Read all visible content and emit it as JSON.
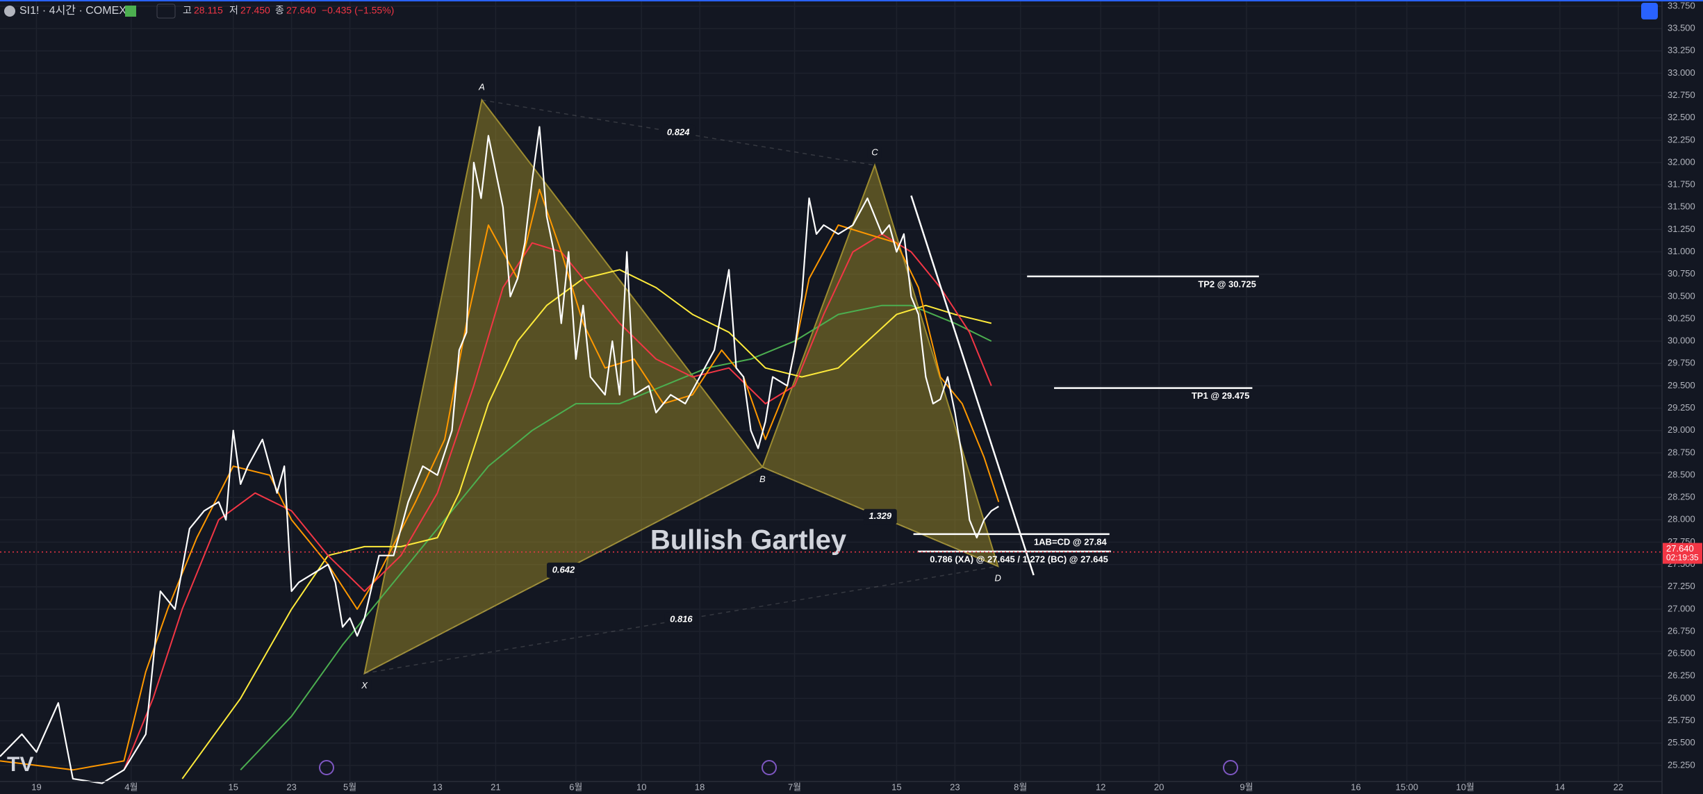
{
  "header": {
    "symbol": "SI1! · 4시간 · COMEX",
    "high_label": "고",
    "high": "28.115",
    "low_label": "저",
    "low": "27.450",
    "close_label": "종",
    "close": "27.640",
    "change": "−0.435 (−1.55%)"
  },
  "chart_data": {
    "type": "line",
    "title": "Bullish Gartley",
    "xlim": [
      -5,
      223
    ],
    "ylim": [
      25.07,
      33.82
    ],
    "grid": true,
    "xticks": [
      {
        "value": 0,
        "label": "19"
      },
      {
        "value": 13,
        "label": "4월"
      },
      {
        "value": 27,
        "label": "15"
      },
      {
        "value": 35,
        "label": "23"
      },
      {
        "value": 43,
        "label": "5월"
      },
      {
        "value": 55,
        "label": "13"
      },
      {
        "value": 63,
        "label": "21"
      },
      {
        "value": 74,
        "label": "6월"
      },
      {
        "value": 83,
        "label": "10"
      },
      {
        "value": 91,
        "label": "18"
      },
      {
        "value": 104,
        "label": "7월"
      },
      {
        "value": 118,
        "label": "15"
      },
      {
        "value": 126,
        "label": "23"
      },
      {
        "value": 135,
        "label": "8월"
      },
      {
        "value": 146,
        "label": "12"
      },
      {
        "value": 154,
        "label": "20"
      },
      {
        "value": 166,
        "label": "9월"
      },
      {
        "value": 181,
        "label": "16"
      },
      {
        "value": 188,
        "label": "15:00"
      },
      {
        "value": 196,
        "label": "10월"
      },
      {
        "value": 209,
        "label": "14"
      },
      {
        "value": 217,
        "label": "22"
      }
    ],
    "yticks": [
      {
        "value": 25.25,
        "label": "25.250"
      },
      {
        "value": 25.5,
        "label": "25.500"
      },
      {
        "value": 25.75,
        "label": "25.750"
      },
      {
        "value": 26,
        "label": "26.000"
      },
      {
        "value": 26.25,
        "label": "26.250"
      },
      {
        "value": 26.5,
        "label": "26.500"
      },
      {
        "value": 26.75,
        "label": "26.750"
      },
      {
        "value": 27,
        "label": "27.000"
      },
      {
        "value": 27.25,
        "label": "27.250"
      },
      {
        "value": 27.5,
        "label": "27.500"
      },
      {
        "value": 27.75,
        "label": "27.750"
      },
      {
        "value": 28,
        "label": "28.000"
      },
      {
        "value": 28.25,
        "label": "28.250"
      },
      {
        "value": 28.5,
        "label": "28.500"
      },
      {
        "value": 28.75,
        "label": "28.750"
      },
      {
        "value": 29,
        "label": "29.000"
      },
      {
        "value": 29.25,
        "label": "29.250"
      },
      {
        "value": 29.5,
        "label": "29.500"
      },
      {
        "value": 29.75,
        "label": "29.750"
      },
      {
        "value": 30,
        "label": "30.000"
      },
      {
        "value": 30.25,
        "label": "30.250"
      },
      {
        "value": 30.5,
        "label": "30.500"
      },
      {
        "value": 30.75,
        "label": "30.750"
      },
      {
        "value": 31,
        "label": "31.000"
      },
      {
        "value": 31.25,
        "label": "31.250"
      },
      {
        "value": 31.5,
        "label": "31.500"
      },
      {
        "value": 31.75,
        "label": "31.750"
      },
      {
        "value": 32,
        "label": "32.000"
      },
      {
        "value": 32.25,
        "label": "32.250"
      },
      {
        "value": 32.5,
        "label": "32.500"
      },
      {
        "value": 32.75,
        "label": "32.750"
      },
      {
        "value": 33,
        "label": "33.000"
      },
      {
        "value": 33.25,
        "label": "33.250"
      },
      {
        "value": 33.5,
        "label": "33.500"
      },
      {
        "value": 33.75,
        "label": "33.750"
      }
    ],
    "series": [
      {
        "color": "#4caf50",
        "x": [
          28,
          35,
          42,
          48,
          55,
          62,
          68,
          74,
          80,
          86,
          92,
          98,
          104,
          110,
          116,
          120,
          126,
          131
        ],
        "values": [
          25.2,
          25.8,
          26.6,
          27.2,
          27.9,
          28.6,
          29.0,
          29.3,
          29.3,
          29.5,
          29.7,
          29.8,
          30.0,
          30.3,
          30.4,
          30.4,
          30.2,
          30.0
        ]
      },
      {
        "color": "#ffeb3b",
        "x": [
          20,
          28,
          35,
          40,
          45,
          50,
          55,
          58,
          62,
          66,
          70,
          75,
          80,
          85,
          90,
          95,
          100,
          105,
          110,
          114,
          118,
          122,
          126,
          131
        ],
        "values": [
          25.1,
          26.0,
          27.0,
          27.6,
          27.7,
          27.7,
          27.8,
          28.3,
          29.3,
          30.0,
          30.4,
          30.7,
          30.8,
          30.6,
          30.3,
          30.1,
          29.7,
          29.6,
          29.7,
          30.0,
          30.3,
          30.4,
          30.3,
          30.2
        ]
      },
      {
        "color": "#f23645",
        "x": [
          12,
          16,
          20,
          25,
          30,
          35,
          40,
          45,
          50,
          55,
          60,
          64,
          68,
          72,
          76,
          80,
          85,
          90,
          95,
          100,
          104,
          108,
          112,
          116,
          120,
          124,
          128,
          131
        ],
        "values": [
          25.2,
          26.0,
          27.0,
          28.0,
          28.3,
          28.1,
          27.6,
          27.2,
          27.6,
          28.3,
          29.5,
          30.6,
          31.1,
          31.0,
          30.6,
          30.2,
          29.8,
          29.6,
          29.7,
          29.3,
          29.5,
          30.3,
          31.0,
          31.2,
          31.0,
          30.6,
          30.1,
          29.5
        ]
      },
      {
        "color": "#ff9800",
        "x": [
          -5,
          5,
          12,
          15,
          18,
          22,
          27,
          32,
          35,
          40,
          44,
          47,
          52,
          56,
          59,
          62,
          64,
          66,
          69,
          72,
          75,
          78,
          82,
          86,
          90,
          94,
          97,
          100,
          103,
          106,
          110,
          114,
          118,
          121,
          124,
          127,
          130,
          132
        ],
        "values": [
          25.3,
          25.2,
          25.3,
          26.3,
          27.0,
          27.8,
          28.6,
          28.5,
          28.0,
          27.5,
          27.0,
          27.4,
          28.2,
          28.9,
          30.2,
          31.3,
          31.0,
          30.7,
          31.7,
          31.0,
          30.2,
          29.7,
          29.8,
          29.3,
          29.4,
          29.9,
          29.6,
          28.9,
          29.5,
          30.7,
          31.3,
          31.2,
          31.1,
          30.6,
          29.6,
          29.3,
          28.7,
          28.2
        ]
      },
      {
        "color": "#ffffff",
        "x": [
          -5,
          -2,
          0,
          3,
          5,
          9,
          12,
          15,
          17,
          19,
          21,
          23,
          25,
          26,
          27,
          28,
          29,
          31,
          33,
          34,
          35,
          36,
          38,
          40,
          41,
          42,
          43,
          44,
          45,
          47,
          49,
          51,
          53,
          55,
          57,
          58,
          59,
          60,
          61,
          62,
          64,
          65,
          66,
          67,
          68,
          69,
          70,
          71,
          72,
          73,
          74,
          75,
          76,
          78,
          79,
          80,
          81,
          82,
          84,
          85,
          87,
          89,
          91,
          93,
          95,
          96,
          97,
          98,
          99,
          100,
          101,
          103,
          104,
          105,
          106,
          107,
          108,
          110,
          112,
          114,
          116,
          117,
          118,
          119,
          120,
          121,
          122,
          123,
          124,
          125,
          126,
          127,
          128,
          129,
          130,
          131,
          132
        ],
        "values": [
          25.35,
          25.6,
          25.4,
          25.95,
          25.1,
          25.05,
          25.2,
          25.6,
          27.2,
          27.0,
          27.9,
          28.1,
          28.2,
          28.0,
          29.0,
          28.4,
          28.6,
          28.9,
          28.3,
          28.6,
          27.2,
          27.3,
          27.4,
          27.5,
          27.3,
          26.8,
          26.9,
          26.7,
          26.9,
          27.6,
          27.6,
          28.2,
          28.6,
          28.5,
          29.0,
          29.9,
          30.1,
          32.0,
          31.6,
          32.3,
          31.5,
          30.5,
          30.7,
          31.1,
          31.8,
          32.4,
          31.4,
          31.0,
          30.2,
          31.0,
          29.8,
          30.4,
          29.6,
          29.4,
          30.0,
          29.4,
          31.0,
          29.4,
          29.5,
          29.2,
          29.4,
          29.3,
          29.6,
          29.9,
          30.8,
          29.7,
          29.6,
          29.0,
          28.8,
          29.1,
          29.6,
          29.5,
          29.9,
          30.5,
          31.6,
          31.2,
          31.3,
          31.2,
          31.3,
          31.6,
          31.2,
          31.3,
          31.0,
          31.2,
          30.5,
          30.3,
          29.6,
          29.3,
          29.35,
          29.6,
          29.2,
          28.7,
          28.0,
          27.8,
          28.0,
          28.1,
          28.15
        ]
      }
    ],
    "pattern": {
      "points": [
        {
          "label": "X",
          "x": 45,
          "y": 26.28
        },
        {
          "label": "A",
          "x": 61.1,
          "y": 32.7
        },
        {
          "label": "B",
          "x": 99.6,
          "y": 28.59
        },
        {
          "label": "C",
          "x": 115,
          "y": 31.97
        },
        {
          "label": "D",
          "x": 131.9,
          "y": 27.48
        }
      ],
      "ratios": [
        "0.642",
        "0.824",
        "1.329",
        "0.816"
      ]
    },
    "levels": [
      {
        "label": "TP2 @ 30.725",
        "value": 30.725,
        "x": [
          135.9,
          167.7
        ]
      },
      {
        "label": "TP1 @ 29.475",
        "value": 29.475,
        "x": [
          139.6,
          166.8
        ]
      },
      {
        "label": "1AB=CD @ 27.84",
        "value": 27.84,
        "x": [
          120.3,
          147.2
        ]
      },
      {
        "label": "0.786 (XA) @ 27.645 / 1.272 (BC) @ 27.645",
        "value": 27.645,
        "x": [
          120.9,
          147.4
        ]
      }
    ],
    "trendline": {
      "x": [
        120,
        136.8
      ],
      "values": [
        31.63,
        27.38
      ]
    },
    "last_price": {
      "value": 27.64,
      "label": "27.640",
      "countdown": "02:19:35"
    }
  }
}
